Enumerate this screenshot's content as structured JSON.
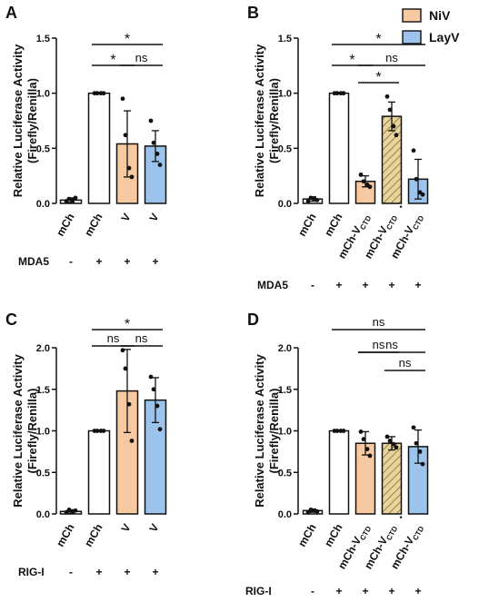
{
  "colors": {
    "empty": "#ffffff",
    "NiV": "#f7c9a0",
    "LayV": "#9cc3ec",
    "edge": "#111111",
    "hatch": "#e8d49a"
  },
  "legend": [
    {
      "label": "NiV",
      "color": "#f7c9a0"
    },
    {
      "label": "LayV",
      "color": "#9cc3ec"
    }
  ],
  "chart_data": [
    {
      "type": "bar",
      "panel": "A",
      "ylabel": [
        "Relative Luciferase Activity",
        "(Firefly/Renilla)"
      ],
      "ylim": [
        0,
        1.5
      ],
      "yticks": [
        "0.0",
        "0.5",
        "1.0",
        "1.5"
      ],
      "categories": [
        {
          "main": "mCh",
          "sub": "",
          "extra": ""
        },
        {
          "main": "mCh",
          "sub": "",
          "extra": ""
        },
        {
          "main": "V",
          "sub": "",
          "extra": ""
        },
        {
          "main": "V",
          "sub": "",
          "extra": ""
        }
      ],
      "values": [
        0.03,
        1.0,
        0.54,
        0.52
      ],
      "errors": [
        0.02,
        0.0,
        0.3,
        0.14
      ],
      "fills": [
        "empty",
        "empty",
        "NiV",
        "LayV"
      ],
      "points": [
        [
          0.02,
          0.04,
          0.03,
          0.05
        ],
        [
          1.0,
          1.0,
          1.0,
          1.0
        ],
        [
          0.95,
          0.62,
          0.32,
          0.24
        ],
        [
          0.75,
          0.55,
          0.45,
          0.35
        ]
      ],
      "condition": {
        "label": "MDA5",
        "signs": [
          "-",
          "+",
          "+",
          "+"
        ]
      },
      "significance": [
        {
          "from": 1,
          "to": 3,
          "label": "*"
        },
        {
          "from": 1,
          "to": 2,
          "label": "*"
        },
        {
          "from": 2,
          "to": 3,
          "label": "ns"
        }
      ]
    },
    {
      "type": "bar",
      "panel": "B",
      "ylabel": [
        "Relative Luciferase Activity",
        "(Firefly/Renilla)"
      ],
      "ylim": [
        0,
        1.5
      ],
      "yticks": [
        "0.0",
        "0.5",
        "1.0",
        "1.5"
      ],
      "categories": [
        {
          "main": "mCh",
          "sub": "",
          "extra": ""
        },
        {
          "main": "mCh",
          "sub": "",
          "extra": ""
        },
        {
          "main": "mCh-V",
          "sub": "CTD",
          "extra": ""
        },
        {
          "main": "mCh-V",
          "sub": "CTD",
          "extra": "*"
        },
        {
          "main": "mCh-V",
          "sub": "CTD",
          "extra": ""
        }
      ],
      "values": [
        0.04,
        1.0,
        0.2,
        0.79,
        0.22
      ],
      "errors": [
        0.02,
        0.0,
        0.05,
        0.13,
        0.18
      ],
      "fills": [
        "empty",
        "empty",
        "NiV",
        "hatch",
        "LayV"
      ],
      "points": [
        [
          0.02,
          0.05,
          0.04,
          0.03
        ],
        [
          1.0,
          1.0,
          1.0,
          1.0
        ],
        [
          0.26,
          0.2,
          0.17,
          0.15
        ],
        [
          0.97,
          0.85,
          0.7,
          0.62
        ],
        [
          0.48,
          0.22,
          0.1,
          0.08
        ]
      ],
      "condition": {
        "label": "MDA5",
        "signs": [
          "-",
          "+",
          "+",
          "+",
          "+"
        ]
      },
      "significance": [
        {
          "from": 1,
          "to": 4,
          "label": "*"
        },
        {
          "from": 1,
          "to": 2,
          "label": "*"
        },
        {
          "from": 2,
          "to": 4,
          "label": "ns"
        },
        {
          "from": 2,
          "to": 3,
          "label": "*"
        }
      ]
    },
    {
      "type": "bar",
      "panel": "C",
      "ylabel": [
        "Relative Luciferase Activity",
        "(Firefly/Renilla)"
      ],
      "ylim": [
        0,
        2.0
      ],
      "yticks": [
        "0.0",
        "0.5",
        "1.0",
        "1.5",
        "2.0"
      ],
      "categories": [
        {
          "main": "mCh",
          "sub": "",
          "extra": ""
        },
        {
          "main": "mCh",
          "sub": "",
          "extra": ""
        },
        {
          "main": "V",
          "sub": "",
          "extra": ""
        },
        {
          "main": "V",
          "sub": "",
          "extra": ""
        }
      ],
      "values": [
        0.03,
        1.0,
        1.48,
        1.37
      ],
      "errors": [
        0.02,
        0.0,
        0.5,
        0.27
      ],
      "fills": [
        "empty",
        "empty",
        "NiV",
        "LayV"
      ],
      "points": [
        [
          0.02,
          0.05,
          0.03,
          0.04
        ],
        [
          1.0,
          1.0,
          1.0,
          1.0
        ],
        [
          1.97,
          1.75,
          1.32,
          0.88
        ],
        [
          1.65,
          1.5,
          1.3,
          1.02
        ]
      ],
      "condition": {
        "label": "RIG-I",
        "signs": [
          "-",
          "+",
          "+",
          "+"
        ]
      },
      "significance": [
        {
          "from": 1,
          "to": 3,
          "label": "*"
        },
        {
          "from": 1,
          "to": 2,
          "label": "ns"
        },
        {
          "from": 2,
          "to": 3,
          "label": "ns"
        }
      ]
    },
    {
      "type": "bar",
      "panel": "D",
      "ylabel": [
        "Relative Luciferase Activity",
        "(Firefly/Renilla)"
      ],
      "ylim": [
        0,
        2.0
      ],
      "yticks": [
        "0.0",
        "0.5",
        "1.0",
        "1.5",
        "2.0"
      ],
      "categories": [
        {
          "main": "mCh",
          "sub": "",
          "extra": ""
        },
        {
          "main": "mCh",
          "sub": "",
          "extra": ""
        },
        {
          "main": "mCh-V",
          "sub": "CTD",
          "extra": ""
        },
        {
          "main": "mCh-V",
          "sub": "CTD",
          "extra": "*"
        },
        {
          "main": "mCh-V",
          "sub": "CTD",
          "extra": ""
        }
      ],
      "values": [
        0.04,
        1.0,
        0.85,
        0.85,
        0.81
      ],
      "errors": [
        0.02,
        0.0,
        0.14,
        0.08,
        0.2
      ],
      "fills": [
        "empty",
        "empty",
        "NiV",
        "hatch",
        "LayV"
      ],
      "points": [
        [
          0.02,
          0.05,
          0.04,
          0.03
        ],
        [
          1.0,
          1.0,
          1.0,
          1.0
        ],
        [
          0.99,
          0.9,
          0.78,
          0.7
        ],
        [
          0.93,
          0.88,
          0.84,
          0.8
        ],
        [
          1.04,
          0.85,
          0.75,
          0.6
        ]
      ],
      "condition": {
        "label": "RIG-I",
        "signs": [
          "-",
          "+",
          "+",
          "+",
          "+"
        ]
      },
      "significance": [
        {
          "from": 1,
          "to": 4,
          "label": "ns"
        },
        {
          "from": 2,
          "to": 3,
          "label": "ns"
        },
        {
          "from": 2,
          "to": 4,
          "label": "ns"
        },
        {
          "from": 3,
          "to": 4,
          "label": "ns"
        }
      ]
    }
  ]
}
